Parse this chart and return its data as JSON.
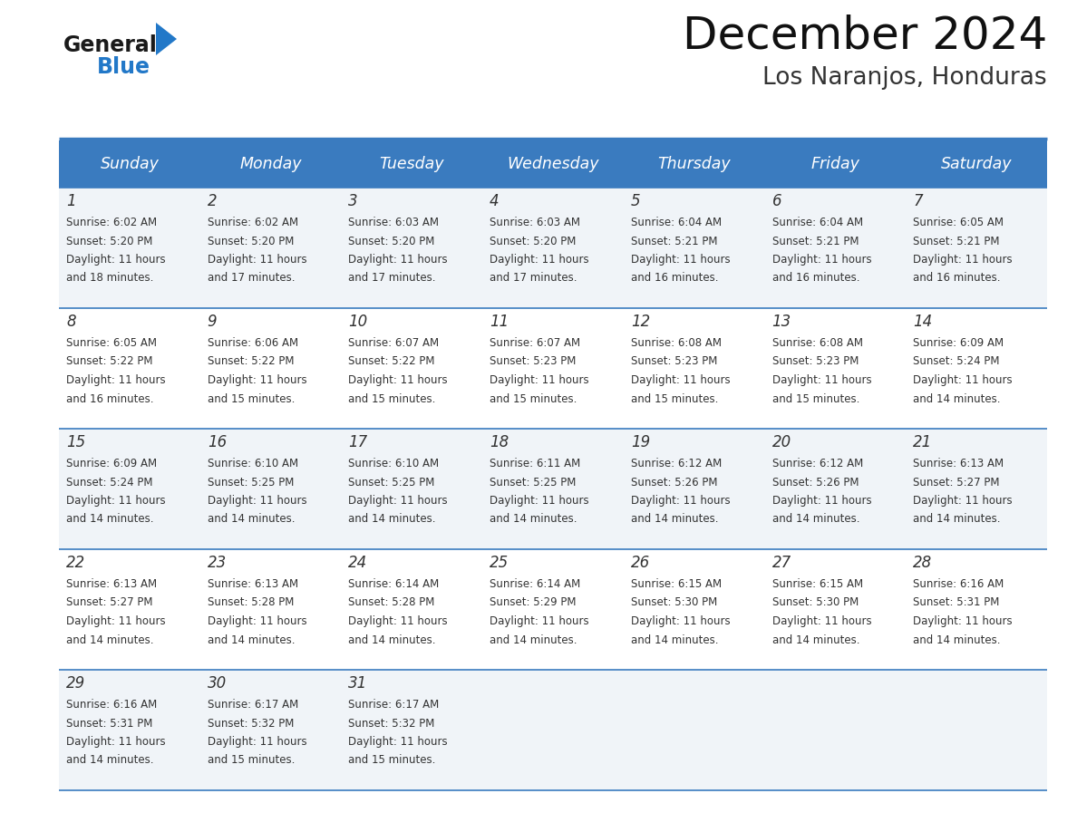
{
  "title": "December 2024",
  "subtitle": "Los Naranjos, Honduras",
  "header_color": "#3a7bbf",
  "header_text_color": "#ffffff",
  "cell_bg_even": "#f0f4f8",
  "cell_bg_odd": "#ffffff",
  "border_color": "#3a7bbf",
  "text_color": "#333333",
  "days_of_week": [
    "Sunday",
    "Monday",
    "Tuesday",
    "Wednesday",
    "Thursday",
    "Friday",
    "Saturday"
  ],
  "weeks": [
    [
      {
        "day": 1,
        "sunrise": "6:02 AM",
        "sunset": "5:20 PM",
        "daylight_hours": 11,
        "daylight_minutes": 18
      },
      {
        "day": 2,
        "sunrise": "6:02 AM",
        "sunset": "5:20 PM",
        "daylight_hours": 11,
        "daylight_minutes": 17
      },
      {
        "day": 3,
        "sunrise": "6:03 AM",
        "sunset": "5:20 PM",
        "daylight_hours": 11,
        "daylight_minutes": 17
      },
      {
        "day": 4,
        "sunrise": "6:03 AM",
        "sunset": "5:20 PM",
        "daylight_hours": 11,
        "daylight_minutes": 17
      },
      {
        "day": 5,
        "sunrise": "6:04 AM",
        "sunset": "5:21 PM",
        "daylight_hours": 11,
        "daylight_minutes": 16
      },
      {
        "day": 6,
        "sunrise": "6:04 AM",
        "sunset": "5:21 PM",
        "daylight_hours": 11,
        "daylight_minutes": 16
      },
      {
        "day": 7,
        "sunrise": "6:05 AM",
        "sunset": "5:21 PM",
        "daylight_hours": 11,
        "daylight_minutes": 16
      }
    ],
    [
      {
        "day": 8,
        "sunrise": "6:05 AM",
        "sunset": "5:22 PM",
        "daylight_hours": 11,
        "daylight_minutes": 16
      },
      {
        "day": 9,
        "sunrise": "6:06 AM",
        "sunset": "5:22 PM",
        "daylight_hours": 11,
        "daylight_minutes": 15
      },
      {
        "day": 10,
        "sunrise": "6:07 AM",
        "sunset": "5:22 PM",
        "daylight_hours": 11,
        "daylight_minutes": 15
      },
      {
        "day": 11,
        "sunrise": "6:07 AM",
        "sunset": "5:23 PM",
        "daylight_hours": 11,
        "daylight_minutes": 15
      },
      {
        "day": 12,
        "sunrise": "6:08 AM",
        "sunset": "5:23 PM",
        "daylight_hours": 11,
        "daylight_minutes": 15
      },
      {
        "day": 13,
        "sunrise": "6:08 AM",
        "sunset": "5:23 PM",
        "daylight_hours": 11,
        "daylight_minutes": 15
      },
      {
        "day": 14,
        "sunrise": "6:09 AM",
        "sunset": "5:24 PM",
        "daylight_hours": 11,
        "daylight_minutes": 14
      }
    ],
    [
      {
        "day": 15,
        "sunrise": "6:09 AM",
        "sunset": "5:24 PM",
        "daylight_hours": 11,
        "daylight_minutes": 14
      },
      {
        "day": 16,
        "sunrise": "6:10 AM",
        "sunset": "5:25 PM",
        "daylight_hours": 11,
        "daylight_minutes": 14
      },
      {
        "day": 17,
        "sunrise": "6:10 AM",
        "sunset": "5:25 PM",
        "daylight_hours": 11,
        "daylight_minutes": 14
      },
      {
        "day": 18,
        "sunrise": "6:11 AM",
        "sunset": "5:25 PM",
        "daylight_hours": 11,
        "daylight_minutes": 14
      },
      {
        "day": 19,
        "sunrise": "6:12 AM",
        "sunset": "5:26 PM",
        "daylight_hours": 11,
        "daylight_minutes": 14
      },
      {
        "day": 20,
        "sunrise": "6:12 AM",
        "sunset": "5:26 PM",
        "daylight_hours": 11,
        "daylight_minutes": 14
      },
      {
        "day": 21,
        "sunrise": "6:13 AM",
        "sunset": "5:27 PM",
        "daylight_hours": 11,
        "daylight_minutes": 14
      }
    ],
    [
      {
        "day": 22,
        "sunrise": "6:13 AM",
        "sunset": "5:27 PM",
        "daylight_hours": 11,
        "daylight_minutes": 14
      },
      {
        "day": 23,
        "sunrise": "6:13 AM",
        "sunset": "5:28 PM",
        "daylight_hours": 11,
        "daylight_minutes": 14
      },
      {
        "day": 24,
        "sunrise": "6:14 AM",
        "sunset": "5:28 PM",
        "daylight_hours": 11,
        "daylight_minutes": 14
      },
      {
        "day": 25,
        "sunrise": "6:14 AM",
        "sunset": "5:29 PM",
        "daylight_hours": 11,
        "daylight_minutes": 14
      },
      {
        "day": 26,
        "sunrise": "6:15 AM",
        "sunset": "5:30 PM",
        "daylight_hours": 11,
        "daylight_minutes": 14
      },
      {
        "day": 27,
        "sunrise": "6:15 AM",
        "sunset": "5:30 PM",
        "daylight_hours": 11,
        "daylight_minutes": 14
      },
      {
        "day": 28,
        "sunrise": "6:16 AM",
        "sunset": "5:31 PM",
        "daylight_hours": 11,
        "daylight_minutes": 14
      }
    ],
    [
      {
        "day": 29,
        "sunrise": "6:16 AM",
        "sunset": "5:31 PM",
        "daylight_hours": 11,
        "daylight_minutes": 14
      },
      {
        "day": 30,
        "sunrise": "6:17 AM",
        "sunset": "5:32 PM",
        "daylight_hours": 11,
        "daylight_minutes": 15
      },
      {
        "day": 31,
        "sunrise": "6:17 AM",
        "sunset": "5:32 PM",
        "daylight_hours": 11,
        "daylight_minutes": 15
      },
      null,
      null,
      null,
      null
    ]
  ],
  "logo_general_color": "#1a1a1a",
  "logo_blue_color": "#2278c8",
  "logo_triangle_color": "#2278c8"
}
